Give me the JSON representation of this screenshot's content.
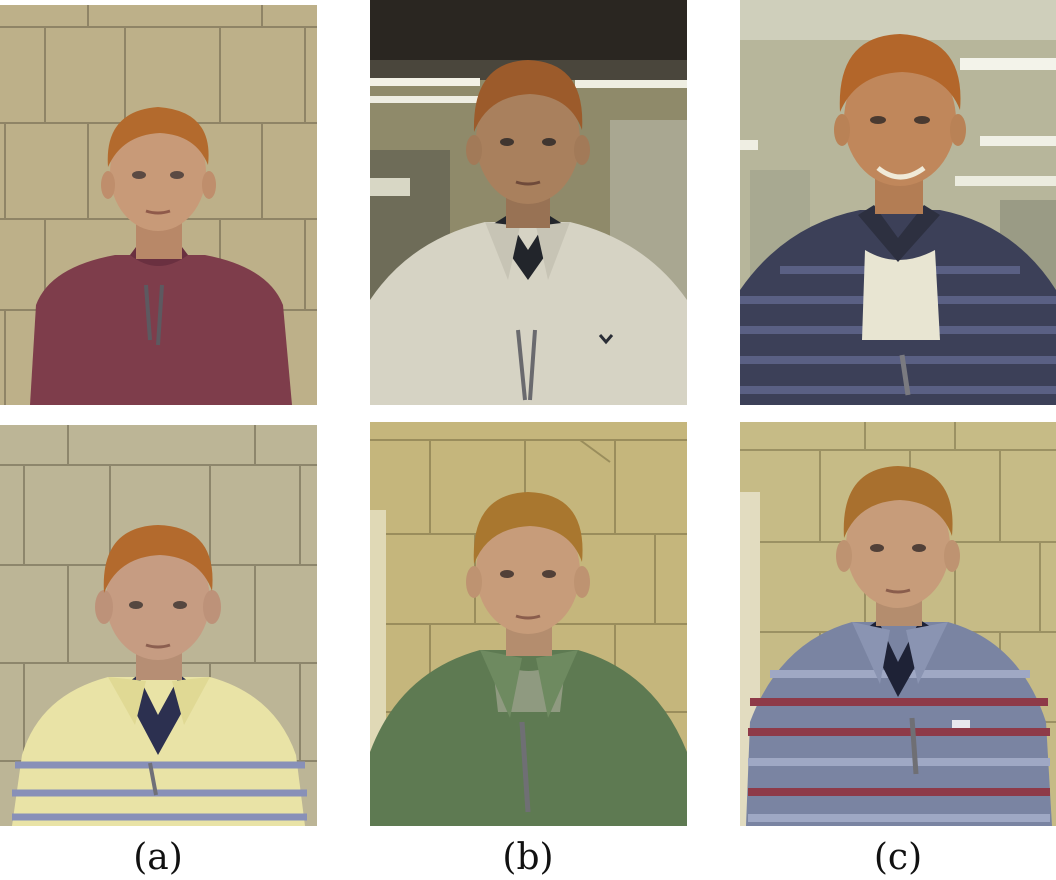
{
  "captions": {
    "a": "(a)",
    "b": "(b)",
    "c": "(c)"
  },
  "photos": [
    {
      "column": "a",
      "row": "top",
      "background": "cinder-block-wall",
      "shirt": "maroon-henley",
      "wall_color": "#bdb089",
      "shirt_color": "#7e3d4b",
      "hair_color": "#b36a2d",
      "skin_color": "#c89a78"
    },
    {
      "column": "b",
      "row": "top",
      "background": "hallway",
      "shirt": "white-polo",
      "wall_color": "#8f8a6a",
      "shirt_color": "#d6d3c4",
      "hair_color": "#9c5b2b",
      "skin_color": "#a9805d"
    },
    {
      "column": "c",
      "row": "top",
      "background": "hallway",
      "shirt": "navy-striped-polo",
      "wall_color": "#b7b69b",
      "shirt_color": "#3c4058",
      "hair_color": "#b3662a",
      "skin_color": "#c0875b"
    },
    {
      "column": "a",
      "row": "bottom",
      "background": "cinder-block-wall",
      "shirt": "yellow-striped-polo",
      "wall_color": "#bcb596",
      "shirt_color": "#e9e3a6",
      "hair_color": "#b36a2d",
      "skin_color": "#c69c82"
    },
    {
      "column": "b",
      "row": "bottom",
      "background": "cinder-block-wall",
      "shirt": "green-polo",
      "wall_color": "#c5b67c",
      "shirt_color": "#5e7a52",
      "hair_color": "#a9772f",
      "skin_color": "#c79c7a"
    },
    {
      "column": "c",
      "row": "bottom",
      "background": "cinder-block-wall",
      "shirt": "blue-red-striped-polo",
      "wall_color": "#c6bb86",
      "shirt_color": "#7a84a2",
      "hair_color": "#a9702e",
      "skin_color": "#c79c7a"
    }
  ]
}
